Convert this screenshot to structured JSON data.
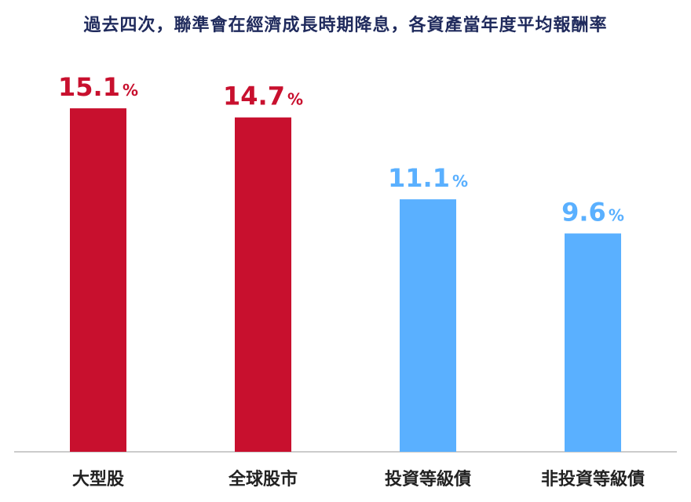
{
  "chart_data": {
    "type": "bar",
    "title": "過去四次，聯準會在經濟成長時期降息，各資產當年度平均報酬率",
    "categories": [
      "大型股",
      "全球股市",
      "投資等級債",
      "非投資等級債"
    ],
    "values": [
      15.1,
      14.7,
      11.1,
      9.6
    ],
    "value_labels": [
      "15.1",
      "14.7",
      "11.1",
      "9.6"
    ],
    "value_suffix": "%",
    "colors": [
      "#c8102e",
      "#c8102e",
      "#5ab0ff",
      "#5ab0ff"
    ],
    "ylim": [
      0,
      18
    ],
    "grid": false,
    "legend": "none"
  }
}
